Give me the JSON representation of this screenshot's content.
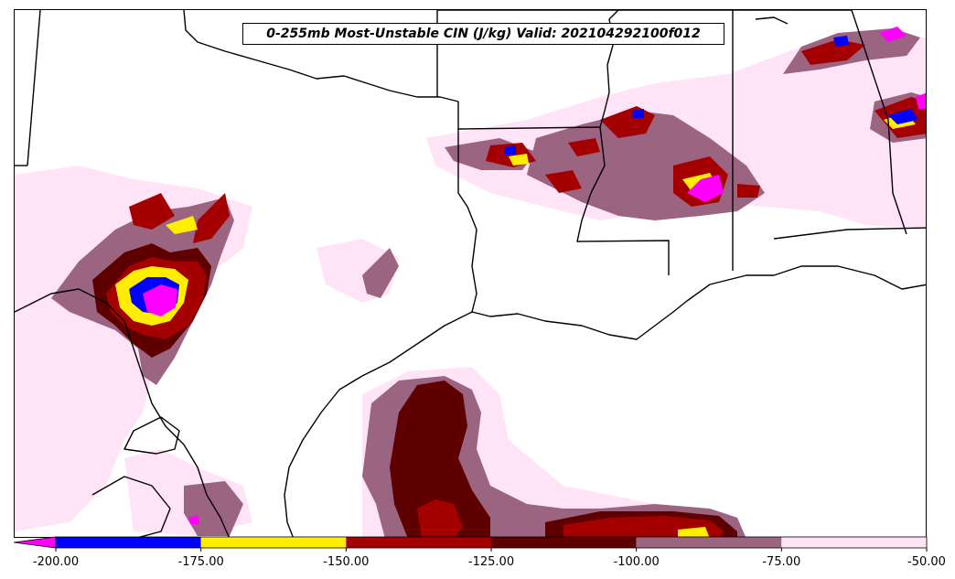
{
  "title": "0-255mb Most-Unstable CIN (J/kg) Valid: 202104292100f012",
  "colorbar": {
    "levels": [
      -200,
      -175,
      -150,
      -125,
      -100,
      -75,
      -50
    ],
    "tick_labels": [
      "-200.00",
      "-175.00",
      "-150.00",
      "-125.00",
      "-100.00",
      "-75.00",
      "-50.00"
    ],
    "colors": [
      "#0000ff",
      "#ffee00",
      "#a50000",
      "#5e0000",
      "#9b6480",
      "#ffe4f7"
    ],
    "under_color": "#ff00ff",
    "extend": "min"
  },
  "map_colors": {
    "background": "#ffffff",
    "boundaries": "#000000"
  }
}
